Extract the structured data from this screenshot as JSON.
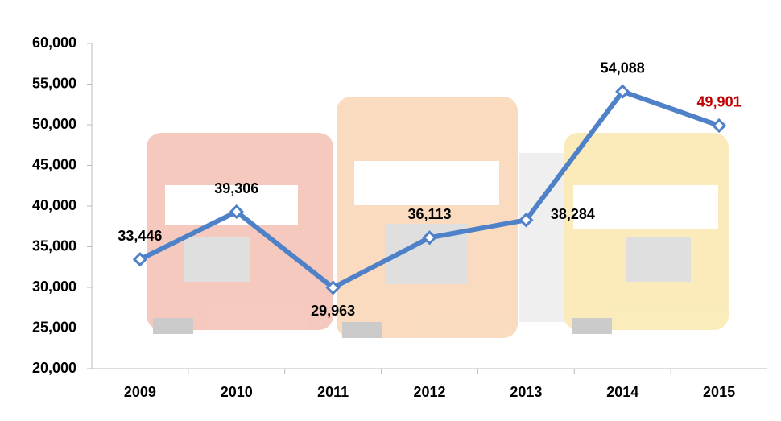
{
  "chart_data": {
    "type": "line",
    "categories": [
      "2009",
      "2010",
      "2011",
      "2012",
      "2013",
      "2014",
      "2015"
    ],
    "values": [
      33446,
      39306,
      29963,
      36113,
      38284,
      54088,
      49901
    ],
    "value_labels": [
      "33,446",
      "39,306",
      "29,963",
      "36,113",
      "38,284",
      "54,088",
      "49,901"
    ],
    "value_label_colors": [
      "#000000",
      "#000000",
      "#000000",
      "#000000",
      "#000000",
      "#000000",
      "#c00000"
    ],
    "color": "#4f81c9",
    "ylim": [
      20000,
      60000
    ],
    "yticks": [
      {
        "value": 20000,
        "label": "20,000"
      },
      {
        "value": 25000,
        "label": "25,000"
      },
      {
        "value": 30000,
        "label": "30,000"
      },
      {
        "value": 35000,
        "label": "35,000"
      },
      {
        "value": 40000,
        "label": "40,000"
      },
      {
        "value": 45000,
        "label": "45,000"
      },
      {
        "value": 50000,
        "label": "50,000"
      },
      {
        "value": 55000,
        "label": "55,000"
      },
      {
        "value": 60000,
        "label": "60,000"
      }
    ],
    "grid": false
  }
}
